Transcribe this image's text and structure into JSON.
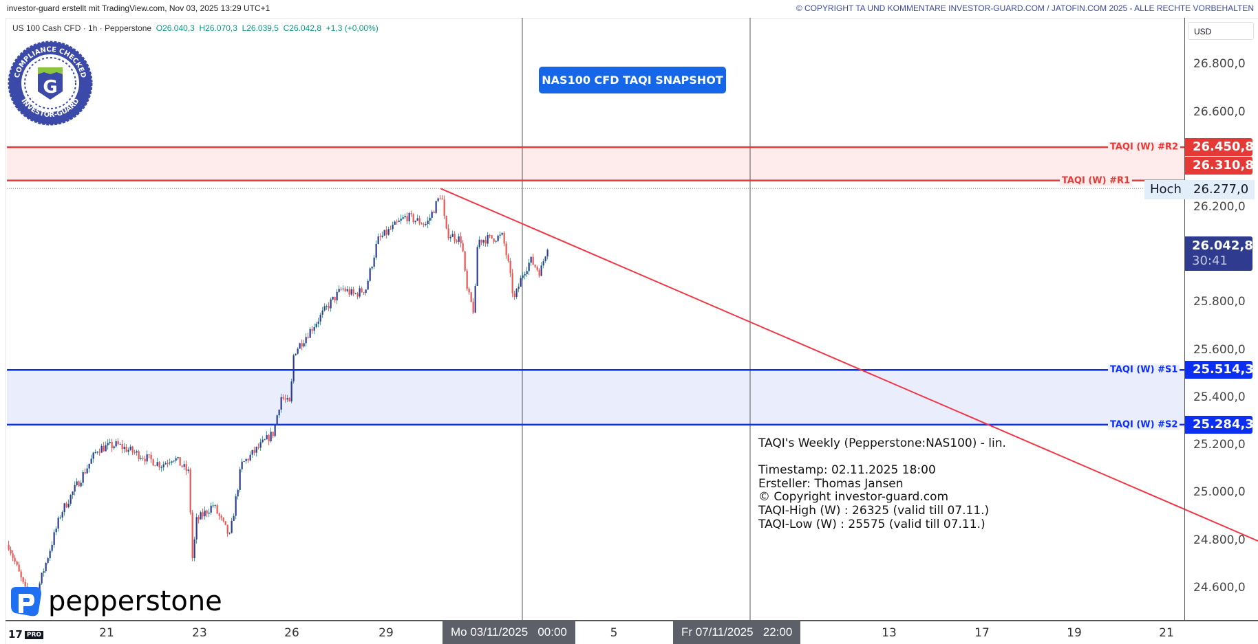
{
  "header": {
    "left": "investor-guard erstellt mit TradingView.com, Nov 03, 2025 13:29 UTC+1",
    "right": "© COPYRIGHT TA UND KOMMENTARE INVESTOR-GUARD.COM / JATOFIN.COM 2025 - ALLE RECHTE VORBEHALTEN"
  },
  "legend": {
    "symbol": "US 100 Cash CFD · 1h · Pepperstone",
    "open": "O26.040,3",
    "high": "H26.070,3",
    "low": "L26.039,5",
    "close": "C26.042,8",
    "change": "+1,3 (+0,00%)"
  },
  "currency": "USD",
  "snapshot_button": "NAS100 CFD TAQI SNAPSHOT",
  "badge": {
    "top": "COMPLIANCE CHECKED",
    "bottom": "INVESTOR-GUARD",
    "letter": "G"
  },
  "broker_logo": "pepperstone",
  "tv_logo": {
    "mark": "17",
    "tag": "PRO"
  },
  "info_box": [
    "TAQI's Weekly (Pepperstone:NAS100) - lin.",
    "",
    "Timestamp: 02.11.2025 18:00",
    "Ersteller: Thomas Jansen",
    "© Copyright investor-guard.com",
    "TAQI-High (W) : 26325 (valid till 07.11.)",
    "TAQI-Low (W) : 25575 (valid till 07.11.)"
  ],
  "levels": [
    {
      "name": "TAQI (W) #R2",
      "value": 26450.8,
      "label": "26.450,8",
      "color": "#e53935"
    },
    {
      "name": "TAQI (W) #R1",
      "value": 26310.8,
      "label": "26.310,8",
      "color": "#e53935"
    },
    {
      "name": "TAQI (W) #S1",
      "value": 25514.3,
      "label": "25.514,3",
      "color": "#0b2ef0"
    },
    {
      "name": "TAQI (W) #S2",
      "value": 25284.3,
      "label": "25.284,3",
      "color": "#0b2ef0"
    }
  ],
  "zones": {
    "resistance_fill": "#fdeceb",
    "support_fill": "#e9edfc"
  },
  "high_marker": {
    "label": "Hoch",
    "value": 26277.0,
    "text": "26.277,0"
  },
  "current_price": {
    "value": 26042.8,
    "text": "26.042,8",
    "countdown": "30:41",
    "color": "#2e3b8f"
  },
  "price_ticks": [
    "26.800,0",
    "26.600,0",
    "26.200,0",
    "25.800,0",
    "25.600,0",
    "25.400,0",
    "25.200,0",
    "25.000,0",
    "24.800,0",
    "24.600,0"
  ],
  "time_ticks": [
    "21",
    "23",
    "26",
    "29",
    "5",
    "13",
    "17",
    "19",
    "21"
  ],
  "time_markers": [
    "Mo 03/11/2025   00:00",
    "Fr 07/11/2025   22:00"
  ],
  "chart_data": {
    "type": "candlestick",
    "timeframe": "1h",
    "ylim": [
      24450,
      26900
    ],
    "up_color": "#2e3b96",
    "up_wick": "#26a69a",
    "down_color": "#ef5350",
    "price_path": [
      {
        "t": "2025-10-18 21:00",
        "p": 24779
      },
      {
        "t": "2025-10-19 09:00",
        "p": 24509
      },
      {
        "t": "2025-10-20 00:00",
        "p": 24913
      },
      {
        "t": "2025-10-20 19:00",
        "p": 25183
      },
      {
        "t": "2025-10-21 05:00",
        "p": 25200
      },
      {
        "t": "2025-10-22 04:00",
        "p": 25115
      },
      {
        "t": "2025-10-22 10:00",
        "p": 25149
      },
      {
        "t": "2025-10-22 18:00",
        "p": 25082
      },
      {
        "t": "2025-10-22 20:00",
        "p": 24711
      },
      {
        "t": "2025-10-22 22:00",
        "p": 24880
      },
      {
        "t": "2025-10-23 10:00",
        "p": 24947
      },
      {
        "t": "2025-10-23 23:00",
        "p": 24812
      },
      {
        "t": "2025-10-24 08:00",
        "p": 25115
      },
      {
        "t": "2025-10-25 09:00",
        "p": 25250
      },
      {
        "t": "2025-10-25 15:00",
        "p": 25402
      },
      {
        "t": "2025-10-25 22:00",
        "p": 25368
      },
      {
        "t": "2025-10-26 01:00",
        "p": 25587
      },
      {
        "t": "2025-10-27 04:00",
        "p": 25790
      },
      {
        "t": "2025-10-27 14:00",
        "p": 25857
      },
      {
        "t": "2025-10-27 23:00",
        "p": 25830
      },
      {
        "t": "2025-10-28 08:00",
        "p": 25857
      },
      {
        "t": "2025-10-28 17:00",
        "p": 26059
      },
      {
        "t": "2025-10-29 17:00",
        "p": 26160
      },
      {
        "t": "2025-10-30 11:00",
        "p": 26126
      },
      {
        "t": "2025-10-30 21:00",
        "p": 26227
      },
      {
        "t": "2025-10-31 00:00",
        "p": 26261
      },
      {
        "t": "2025-10-31 04:00",
        "p": 26092
      },
      {
        "t": "2025-10-31 18:00",
        "p": 26059
      },
      {
        "t": "2025-10-31 22:00",
        "p": 25857
      },
      {
        "t": "2025-11-01 05:00",
        "p": 25755
      },
      {
        "t": "2025-11-01 08:00",
        "p": 26059
      },
      {
        "t": "2025-11-02 06:00",
        "p": 26076
      },
      {
        "t": "2025-11-02 11:00",
        "p": 25958
      },
      {
        "t": "2025-11-02 16:00",
        "p": 25806
      },
      {
        "t": "2025-11-03 00:00",
        "p": 25924
      },
      {
        "t": "2025-11-03 04:00",
        "p": 25975
      },
      {
        "t": "2025-11-03 09:00",
        "p": 25924
      },
      {
        "t": "2025-11-03 13:00",
        "p": 26043
      }
    ],
    "trendline": {
      "color": "#f23645",
      "from": {
        "t": "2025-10-31 00:00",
        "p": 26277
      },
      "through": {
        "t": "2025-11-07 22:00",
        "p": 25716
      }
    }
  }
}
